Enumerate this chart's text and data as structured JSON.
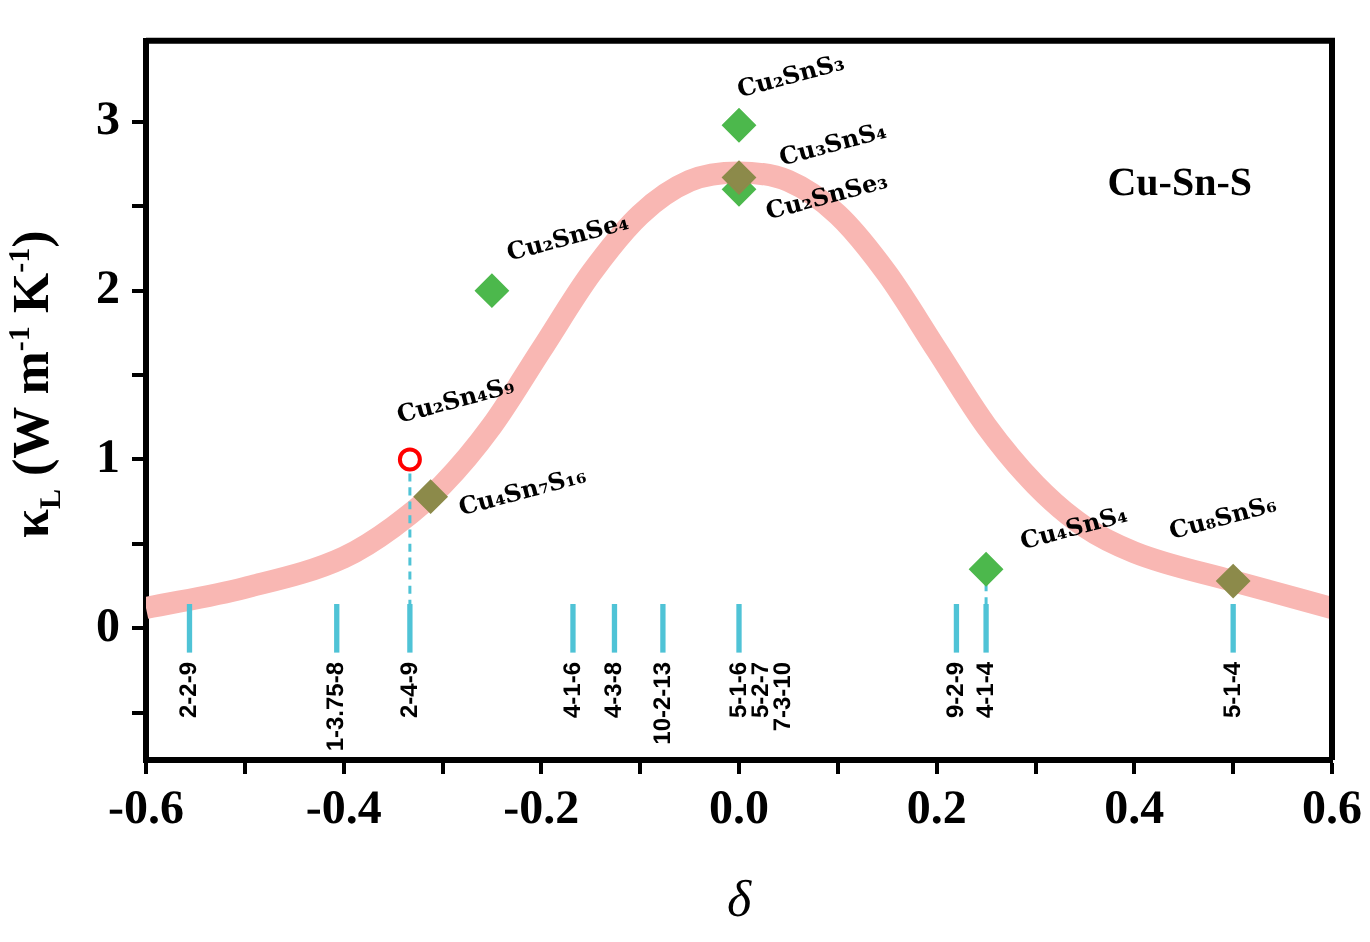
{
  "chart_data": {
    "type": "scatter",
    "xlabel": "δ",
    "ylabel": "κ$_{L}$ (W m$^{-1}$ K$^{-1}$)",
    "xlim": [
      -0.6,
      0.6
    ],
    "xticks": [
      -0.6,
      {
        "value": -0.5,
        "label": null
      },
      -0.4,
      {
        "value": -0.3,
        "label": null
      },
      -0.2,
      {
        "value": -0.1,
        "label": null
      },
      {
        "value": 0,
        "label": "0.0"
      },
      {
        "value": 0.1,
        "label": null
      },
      0.2,
      {
        "value": 0.3,
        "label": null
      },
      0.4,
      {
        "value": 0.5,
        "label": null
      },
      0.6
    ],
    "ylim": [
      -0.78,
      3.48
    ],
    "yticks": [
      {
        "value": -0.5,
        "label": null
      },
      0,
      {
        "value": 0.5,
        "label": null
      },
      1,
      {
        "value": 1.5,
        "label": null
      },
      2,
      {
        "value": 2.5,
        "label": null
      },
      3
    ],
    "grid": false,
    "legend": false,
    "series": [
      {
        "type": "line",
        "color": "#f9b7b3",
        "marker": "none",
        "x": [
          -0.6,
          -0.5,
          -0.4,
          -0.35,
          -0.3,
          -0.25,
          -0.2,
          -0.15,
          -0.1,
          -0.05,
          0,
          0.05,
          0.1,
          0.15,
          0.2,
          0.25,
          0.3,
          0.35,
          0.4,
          0.5,
          0.6
        ],
        "values": [
          0.12,
          0.24,
          0.42,
          0.6,
          0.85,
          1.2,
          1.65,
          2.1,
          2.45,
          2.65,
          2.7,
          2.65,
          2.45,
          2.1,
          1.65,
          1.2,
          0.85,
          0.6,
          0.45,
          0.28,
          0.12
        ]
      },
      {
        "type": "bar",
        "color": "#4fc3d6",
        "x": [
          -0.556,
          -0.407,
          -0.333,
          -0.168,
          -0.126,
          -0.077,
          0,
          0.22,
          0.25,
          0.5
        ],
        "base": [
          -0.14,
          -0.14,
          -0.14,
          -0.14,
          -0.14,
          -0.14,
          -0.14,
          -0.14,
          -0.14,
          -0.14
        ],
        "values": [
          0.28,
          0.28,
          0.28,
          0.28,
          0.28,
          0.28,
          0.28,
          0.28,
          0.28,
          0.28
        ]
      },
      {
        "type": "line",
        "color": "#4fc3d6",
        "line_style": "dashed",
        "marker": "none",
        "x": [
          -0.333,
          -0.333
        ],
        "values": [
          1.0,
          0.14
        ]
      },
      {
        "type": "line",
        "color": "#4fc3d6",
        "line_style": "dashed",
        "marker": "none",
        "x": [
          0.25,
          0.25
        ],
        "values": [
          0.35,
          0.14
        ]
      },
      {
        "marker": "diamond",
        "x": [
          0,
          0,
          0,
          -0.25,
          -0.312,
          0.25,
          0.5
        ],
        "values": [
          2.98,
          2.6,
          2.67,
          2.0,
          0.78,
          0.35,
          0.28
        ],
        "colors": [
          "#4cb84c",
          "#4cb84c",
          "#8c8a4a",
          "#4cb84c",
          "#8c8a4a",
          "#4cb84c",
          "#8c8a4a"
        ]
      },
      {
        "marker": "circle",
        "color": "#ff0000",
        "x": [
          -0.333
        ],
        "values": [
          1.0
        ]
      }
    ],
    "annotations": [
      "Cu-Sn-S",
      {
        "text": "Cu₂SnS₃",
        "x": 0,
        "y": 2.98
      },
      {
        "text": "Cu₃SnS₄",
        "x": 0,
        "y": 2.67
      },
      {
        "text": "Cu₂SnSe₃",
        "x": 0,
        "y": 2.6
      },
      {
        "text": "Cu₂SnSe₄",
        "x": -0.25,
        "y": 2.0
      },
      {
        "text": "Cu₂Sn₄S₉",
        "x": -0.333,
        "y": 1.0
      },
      {
        "text": "Cu₄Sn₇S₁₆",
        "x": -0.312,
        "y": 0.78
      },
      {
        "text": "Cu₄SnS₄",
        "x": 0.25,
        "y": 0.35
      },
      {
        "text": "Cu₈SnS₆",
        "x": 0.5,
        "y": 0.28
      },
      {
        "text": "2-2-9",
        "x": -0.556,
        "y": -0.14
      },
      {
        "text": "1-3.75-8",
        "x": -0.407,
        "y": -0.14
      },
      {
        "text": "2-4-9",
        "x": -0.333,
        "y": -0.14
      },
      {
        "text": "4-1-6",
        "x": -0.168,
        "y": -0.14
      },
      {
        "text": "4-3-8",
        "x": -0.126,
        "y": -0.14
      },
      {
        "text": "10-2-13",
        "x": -0.077,
        "y": -0.14
      },
      {
        "text": "5-1-6\n5-2-7\n7-3-10",
        "x": 0,
        "y": -0.14
      },
      {
        "text": "9-2-9",
        "x": 0.22,
        "y": -0.14
      },
      {
        "text": "4-1-4",
        "x": 0.25,
        "y": -0.14
      },
      {
        "text": "5-1-4",
        "x": 0.5,
        "y": -0.14
      }
    ]
  }
}
